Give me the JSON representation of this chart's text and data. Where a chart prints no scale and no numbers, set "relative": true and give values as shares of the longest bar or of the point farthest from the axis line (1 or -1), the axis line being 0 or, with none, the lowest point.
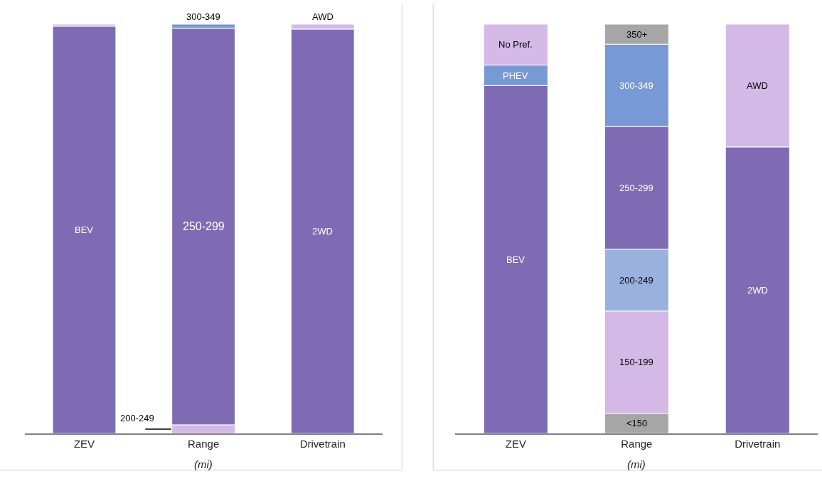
{
  "chart_data": [
    {
      "type": "bar",
      "stacked": true,
      "relative": true,
      "categories": [
        "ZEV",
        "Range",
        "Drivetrain"
      ],
      "annotations": [
        "(mi)"
      ],
      "series": [
        {
          "name": "BEV",
          "color": "#7e6bb3",
          "values": [
            0.995,
            null,
            null
          ]
        },
        {
          "color": "#d4b8e6",
          "values": [
            0.005,
            null,
            null
          ]
        },
        {
          "name": "200-249",
          "color": "#d4b8e6",
          "values": [
            null,
            0.021,
            null
          ]
        },
        {
          "name": "250-299",
          "color": "#7e6bb3",
          "values": [
            null,
            0.969,
            null
          ]
        },
        {
          "name": "300-349",
          "color": "#7799d4",
          "values": [
            null,
            0.01,
            null
          ]
        },
        {
          "name": "2WD",
          "color": "#7e6bb3",
          "values": [
            null,
            null,
            0.988
          ]
        },
        {
          "name": "AWD",
          "color": "#d4b8e6",
          "values": [
            null,
            null,
            0.012
          ]
        }
      ]
    },
    {
      "type": "bar",
      "stacked": true,
      "relative": true,
      "categories": [
        "ZEV",
        "Range",
        "Drivetrain"
      ],
      "annotations": [
        "(mi)"
      ],
      "series": [
        {
          "name": "BEV",
          "color": "#7e6bb3",
          "values": [
            0.85,
            null,
            null
          ]
        },
        {
          "name": "PHEV",
          "color": "#7799d4",
          "values": [
            0.05,
            null,
            null
          ]
        },
        {
          "name": "No Pref.",
          "color": "#d4b8e6",
          "values": [
            0.1,
            null,
            null
          ]
        },
        {
          "name": "<150",
          "color": "#a6a6a6",
          "values": [
            null,
            0.049,
            null
          ]
        },
        {
          "name": "150-199",
          "color": "#d4b8e6",
          "values": [
            null,
            0.25,
            null
          ]
        },
        {
          "name": "200-249",
          "color": "#9ab0de",
          "values": [
            null,
            0.151,
            null
          ]
        },
        {
          "name": "250-299",
          "color": "#7e6bb3",
          "values": [
            null,
            0.3,
            null
          ]
        },
        {
          "name": "300-349",
          "color": "#7799d4",
          "values": [
            null,
            0.201,
            null
          ]
        },
        {
          "name": "350+",
          "color": "#a6a6a6",
          "values": [
            null,
            0.049,
            null
          ]
        },
        {
          "name": "2WD",
          "color": "#7e6bb3",
          "values": [
            null,
            null,
            0.7
          ]
        },
        {
          "name": "AWD",
          "color": "#d4b8e6",
          "values": [
            null,
            null,
            0.3
          ]
        }
      ]
    }
  ]
}
